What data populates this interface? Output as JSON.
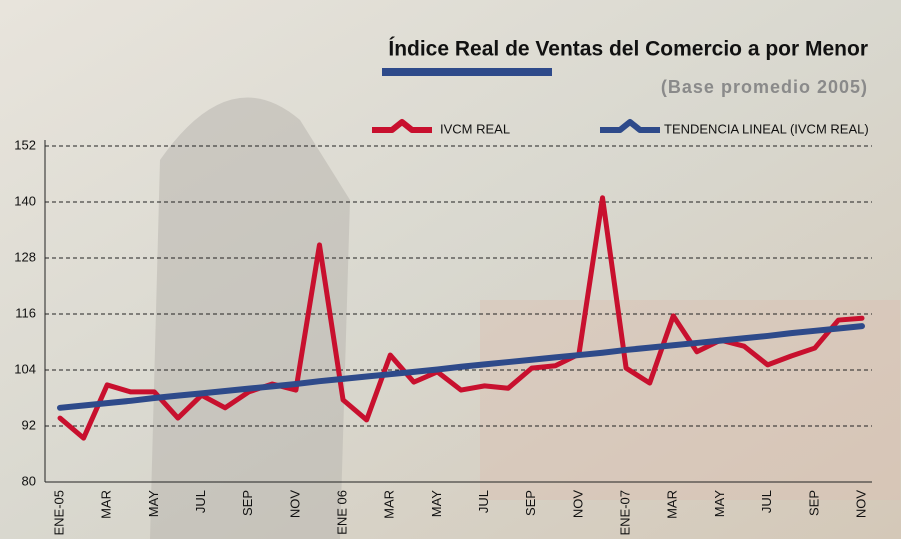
{
  "chart_data": {
    "type": "line",
    "title": "Índice Real de Ventas del Comercio a por Menor",
    "subtitle": "(Base promedio 2005)",
    "categories": [
      "ENE-05",
      null,
      "MAR",
      null,
      "MAY",
      null,
      "JUL",
      null,
      "SEP",
      null,
      "NOV",
      null,
      "ENE 06",
      null,
      "MAR",
      null,
      "MAY",
      null,
      "JUL",
      null,
      "SEP",
      null,
      "NOV",
      null,
      "ENE-07",
      null,
      "MAR",
      null,
      "MAY",
      null,
      "JUL",
      null,
      "SEP",
      null,
      "NOV"
    ],
    "series": [
      {
        "name": "IVCM REAL",
        "color": "#c8102e",
        "values": [
          93.7,
          89.4,
          100.8,
          99.3,
          99.3,
          93.7,
          98.6,
          95.9,
          99.3,
          101,
          99.7,
          130.8,
          97.6,
          93.3,
          107.2,
          101.4,
          103.6,
          99.7,
          100.6,
          100.1,
          104.4,
          104.9,
          107.4,
          140.9,
          104.4,
          101.2,
          115.6,
          107.9,
          110.4,
          109.1,
          105.1,
          107,
          108.7,
          114.7,
          115.1
        ]
      },
      {
        "name": "TENDENCIA LINEAL (IVCM REAL)",
        "color": "#2e4a8a",
        "values": [
          95.9,
          96.4,
          96.9,
          97.4,
          98.0,
          98.5,
          99.0,
          99.5,
          100.0,
          100.5,
          101.0,
          101.6,
          102.1,
          102.6,
          103.1,
          103.6,
          104.1,
          104.7,
          105.2,
          105.7,
          106.2,
          106.7,
          107.2,
          107.7,
          108.3,
          108.8,
          109.3,
          109.8,
          110.3,
          110.8,
          111.3,
          111.9,
          112.4,
          112.9,
          113.4
        ]
      }
    ],
    "ylim": [
      80,
      152
    ],
    "yticks": [
      80,
      92,
      104,
      116,
      128,
      140,
      152
    ],
    "grid": true
  }
}
